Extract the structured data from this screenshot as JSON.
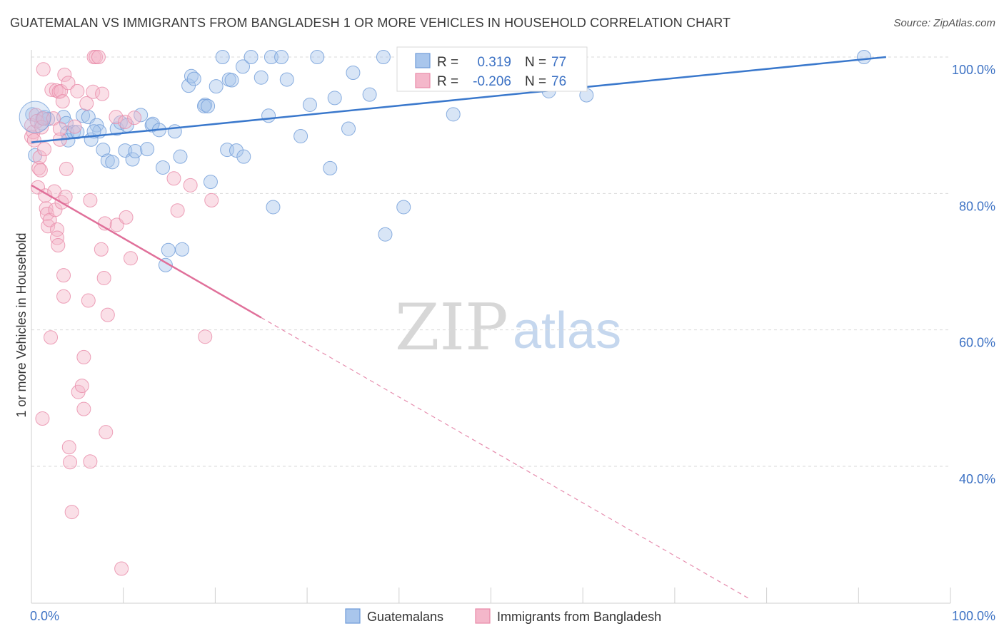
{
  "title": "GUATEMALAN VS IMMIGRANTS FROM BANGLADESH 1 OR MORE VEHICLES IN HOUSEHOLD CORRELATION CHART",
  "source": "Source: ZipAtlas.com",
  "watermark": {
    "zip": "ZIP",
    "atlas": "atlas"
  },
  "colors": {
    "blue_fill": "#a9c6ec",
    "blue_stroke": "#6e9bd8",
    "blue_line": "#3a78cc",
    "pink_fill": "#f4b7ca",
    "pink_stroke": "#e88aa8",
    "pink_line": "#e0709a",
    "accent_text": "#3d72c4"
  },
  "stats": [
    {
      "r_label": "R =",
      "r_value": "0.319",
      "n_label": "N =",
      "n_value": "77"
    },
    {
      "r_label": "R =",
      "r_value": "-0.206",
      "n_label": "N =",
      "n_value": "76"
    }
  ],
  "chart_data": {
    "type": "scatter",
    "title": "GUATEMALAN VS IMMIGRANTS FROM BANGLADESH 1 OR MORE VEHICLES IN HOUSEHOLD CORRELATION CHART",
    "ylabel": "1 or more Vehicles in Household",
    "xlabel": "",
    "xlim": [
      0,
      100
    ],
    "ylim": [
      20,
      100
    ],
    "x_tick_labels": [
      "0.0%",
      "100.0%"
    ],
    "y_tick_labels": [
      "100.0%",
      "80.0%",
      "60.0%",
      "40.0%"
    ],
    "y_tick_values": [
      100,
      80,
      60,
      40
    ],
    "grid": "horizontal dashed",
    "legend_position": "bottom",
    "series": [
      {
        "name": "Guatemalans",
        "color": "#a9c6ec",
        "r": 0.319,
        "n": 77,
        "trend": {
          "x": [
            0,
            93
          ],
          "y": [
            87.5,
            100
          ]
        },
        "points": [
          [
            0.1,
            91.6
          ],
          [
            0.4,
            85.6
          ],
          [
            1.1,
            90.3
          ],
          [
            1.2,
            91.0
          ],
          [
            1.4,
            91.2
          ],
          [
            1.8,
            90.9
          ],
          [
            3.5,
            91.2
          ],
          [
            3.8,
            90.3
          ],
          [
            3.9,
            88.9
          ],
          [
            4.0,
            87.8
          ],
          [
            4.6,
            89.0
          ],
          [
            5.0,
            89.0
          ],
          [
            5.6,
            91.4
          ],
          [
            6.2,
            91.2
          ],
          [
            6.5,
            87.9
          ],
          [
            7.1,
            90.0
          ],
          [
            7.4,
            89.1
          ],
          [
            7.8,
            86.4
          ],
          [
            8.3,
            84.8
          ],
          [
            8.8,
            84.6
          ],
          [
            9.3,
            89.5
          ],
          [
            9.7,
            90.4
          ],
          [
            10.4,
            90.0
          ],
          [
            10.2,
            86.3
          ],
          [
            11.0,
            85.0
          ],
          [
            11.3,
            86.2
          ],
          [
            12.6,
            86.5
          ],
          [
            11.9,
            91.5
          ],
          [
            13.1,
            90.0
          ],
          [
            13.2,
            90.2
          ],
          [
            13.9,
            89.3
          ],
          [
            14.3,
            83.8
          ],
          [
            15.6,
            89.1
          ],
          [
            16.2,
            85.4
          ],
          [
            17.1,
            95.8
          ],
          [
            17.4,
            97.2
          ],
          [
            17.7,
            96.8
          ],
          [
            18.9,
            93.0
          ],
          [
            18.8,
            92.8
          ],
          [
            19.2,
            92.8
          ],
          [
            19.5,
            81.7
          ],
          [
            20.1,
            95.7
          ],
          [
            20.8,
            100.0
          ],
          [
            21.3,
            86.4
          ],
          [
            21.5,
            96.7
          ],
          [
            21.8,
            96.6
          ],
          [
            22.3,
            86.3
          ],
          [
            23.1,
            85.4
          ],
          [
            23.0,
            98.6
          ],
          [
            23.9,
            100.0
          ],
          [
            25.0,
            97.0
          ],
          [
            25.8,
            91.4
          ],
          [
            26.1,
            100.0
          ],
          [
            26.3,
            78.0
          ],
          [
            27.2,
            100.0
          ],
          [
            27.8,
            96.7
          ],
          [
            29.3,
            88.4
          ],
          [
            30.3,
            93.0
          ],
          [
            31.1,
            100.0
          ],
          [
            32.5,
            83.7
          ],
          [
            33.0,
            94.0
          ],
          [
            34.5,
            89.5
          ],
          [
            35.0,
            97.7
          ],
          [
            36.8,
            94.5
          ],
          [
            38.3,
            100.0
          ],
          [
            38.5,
            74.0
          ],
          [
            40.5,
            78.0
          ],
          [
            41.0,
            100.0
          ],
          [
            45.9,
            91.6
          ],
          [
            55.7,
            100.0
          ],
          [
            56.3,
            95.0
          ],
          [
            60.4,
            94.4
          ],
          [
            90.6,
            100.0
          ],
          [
            14.9,
            71.7
          ],
          [
            16.4,
            71.8
          ],
          [
            14.6,
            69.5
          ],
          [
            6.8,
            89.1
          ]
        ]
      },
      {
        "name": "Immigrants from Bangladesh",
        "color": "#f4b7ca",
        "r": -0.206,
        "n": 76,
        "trend": {
          "x": [
            0,
            25
          ],
          "y": [
            81.2,
            61.8
          ]
        },
        "points": [
          [
            0.0,
            90.0
          ],
          [
            0.0,
            88.3
          ],
          [
            0.2,
            89.0
          ],
          [
            0.3,
            87.8
          ],
          [
            0.5,
            91.5
          ],
          [
            0.6,
            90.6
          ],
          [
            0.7,
            80.9
          ],
          [
            0.8,
            83.7
          ],
          [
            0.9,
            85.3
          ],
          [
            1.0,
            83.4
          ],
          [
            1.1,
            89.7
          ],
          [
            1.3,
            91.0
          ],
          [
            1.4,
            86.5
          ],
          [
            1.5,
            79.7
          ],
          [
            1.6,
            77.8
          ],
          [
            1.7,
            77.0
          ],
          [
            1.8,
            75.2
          ],
          [
            2.0,
            76.1
          ],
          [
            2.1,
            58.9
          ],
          [
            2.2,
            95.2
          ],
          [
            2.4,
            91.0
          ],
          [
            2.5,
            80.3
          ],
          [
            2.6,
            77.6
          ],
          [
            2.7,
            95.1
          ],
          [
            2.8,
            74.7
          ],
          [
            2.8,
            73.5
          ],
          [
            2.9,
            72.4
          ],
          [
            3.0,
            94.9
          ],
          [
            3.1,
            87.9
          ],
          [
            3.1,
            89.5
          ],
          [
            3.2,
            95.0
          ],
          [
            3.3,
            78.7
          ],
          [
            3.4,
            93.5
          ],
          [
            3.5,
            68.0
          ],
          [
            3.5,
            64.9
          ],
          [
            3.6,
            97.4
          ],
          [
            3.7,
            79.5
          ],
          [
            3.8,
            83.6
          ],
          [
            4.0,
            96.2
          ],
          [
            4.1,
            42.8
          ],
          [
            4.2,
            40.6
          ],
          [
            4.4,
            33.3
          ],
          [
            4.7,
            89.8
          ],
          [
            5.0,
            95.0
          ],
          [
            5.1,
            50.9
          ],
          [
            5.5,
            51.8
          ],
          [
            5.7,
            56.0
          ],
          [
            5.7,
            48.4
          ],
          [
            6.0,
            93.2
          ],
          [
            6.2,
            64.3
          ],
          [
            6.4,
            40.7
          ],
          [
            6.4,
            79.0
          ],
          [
            6.7,
            94.9
          ],
          [
            6.8,
            100.0
          ],
          [
            7.0,
            100.0
          ],
          [
            7.3,
            100.0
          ],
          [
            7.6,
            71.8
          ],
          [
            7.7,
            94.6
          ],
          [
            7.9,
            67.6
          ],
          [
            8.0,
            75.6
          ],
          [
            8.1,
            45.0
          ],
          [
            8.3,
            62.2
          ],
          [
            9.2,
            91.2
          ],
          [
            9.3,
            75.4
          ],
          [
            10.3,
            76.5
          ],
          [
            10.2,
            90.5
          ],
          [
            10.8,
            70.5
          ],
          [
            11.2,
            91.1
          ],
          [
            15.5,
            82.2
          ],
          [
            15.9,
            77.5
          ],
          [
            17.3,
            81.2
          ],
          [
            18.9,
            59.0
          ],
          [
            19.6,
            79.0
          ],
          [
            1.2,
            47.0
          ],
          [
            9.8,
            25.0
          ],
          [
            1.3,
            98.2
          ]
        ]
      }
    ]
  },
  "legend": [
    {
      "label": "Guatemalans"
    },
    {
      "label": "Immigrants from Bangladesh"
    }
  ]
}
